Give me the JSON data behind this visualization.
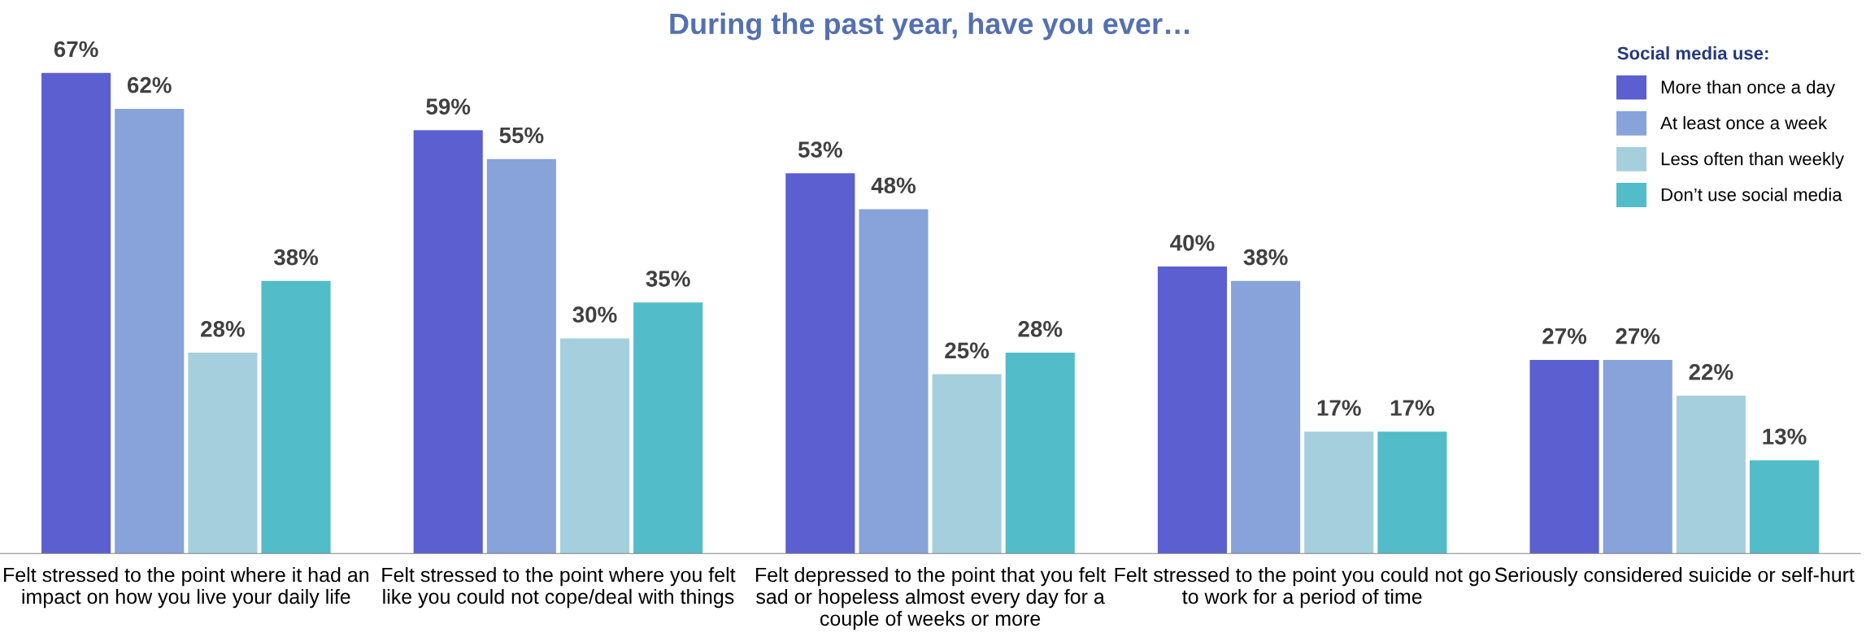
{
  "chart_data": {
    "type": "bar",
    "title": "During the past year, have you ever…",
    "categories": [
      "Felt stressed to the point where it had an\nimpact on how you live your daily life",
      "Felt stressed to the point where you felt\nlike you could not cope/deal with things",
      "Felt depressed to the point that you felt\nsad or hopeless almost every day for a\ncouple of weeks or more",
      "Felt stressed to the point you could not go\nto work for a period of time",
      "Seriously considered suicide or self-hurt"
    ],
    "series": [
      {
        "name": "More than once a day",
        "color": "#5b5fd0",
        "values": [
          67,
          59,
          53,
          40,
          27
        ],
        "value_labels": [
          "67%",
          "59%",
          "53%",
          "40%",
          "27%"
        ]
      },
      {
        "name": "At least once a week",
        "color": "#87a3da",
        "values": [
          62,
          55,
          48,
          38,
          27
        ],
        "value_labels": [
          "62%",
          "55%",
          "48%",
          "38%",
          "27%"
        ]
      },
      {
        "name": "Less often than weekly",
        "color": "#a5cfdd",
        "values": [
          28,
          30,
          25,
          17,
          22
        ],
        "value_labels": [
          "28%",
          "30%",
          "25%",
          "17%",
          "22%"
        ]
      },
      {
        "name": "Don’t use social media",
        "color": "#53bcc9",
        "values": [
          38,
          35,
          28,
          17,
          13
        ],
        "value_labels": [
          "38%",
          "35%",
          "28%",
          "17%",
          "13%"
        ]
      }
    ],
    "legend_title": "Social media use:",
    "legend": "top right",
    "tick_labels": "x",
    "grid": false
  }
}
